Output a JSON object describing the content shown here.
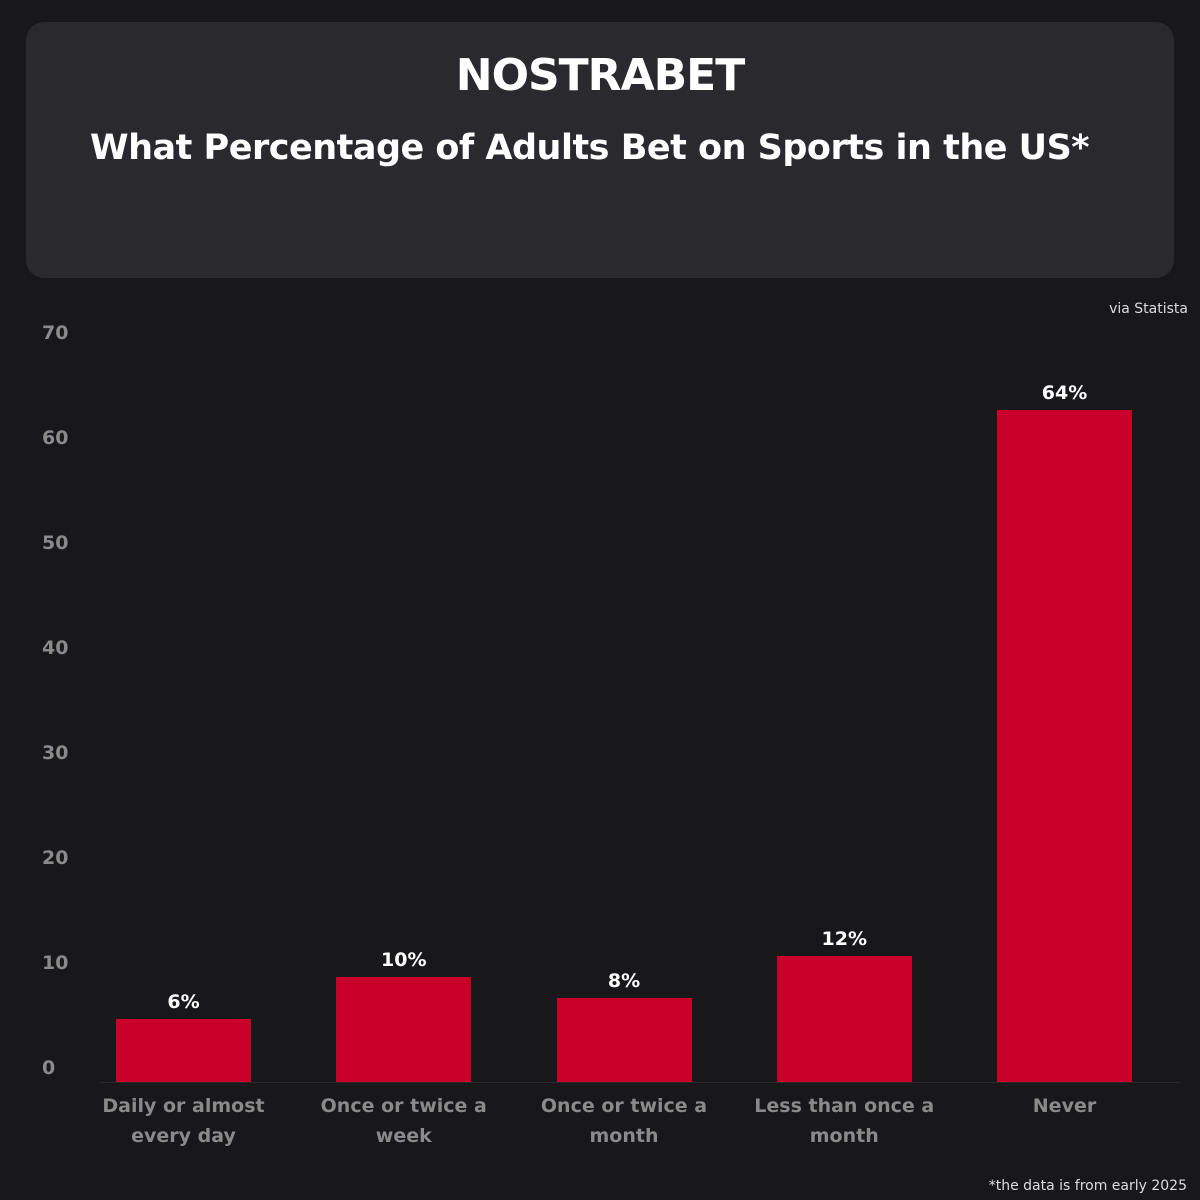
{
  "header": {
    "logo": "NOSTRABET",
    "source": "via Statista",
    "footnote": "*the data is from early 2025"
  },
  "colors": {
    "background": "#18171a",
    "panel": "#2a2a2e",
    "bar": "#c8002a",
    "tick_text": "#8a8a8a"
  },
  "chart_data": {
    "type": "bar",
    "title": "What Percentage of Adults Bet on Sports in the US*",
    "categories": [
      "Daily or almost every day",
      "Once or twice a week",
      "Once or twice a month",
      "Less than once a month",
      "Never"
    ],
    "values": [
      6,
      10,
      8,
      12,
      64
    ],
    "data_labels": [
      "6%",
      "10%",
      "8%",
      "12%",
      "64%"
    ],
    "yticks": [
      0,
      10,
      20,
      30,
      40,
      50,
      60,
      70
    ],
    "ylim": [
      0,
      70
    ],
    "grid": false,
    "legend": "none"
  }
}
